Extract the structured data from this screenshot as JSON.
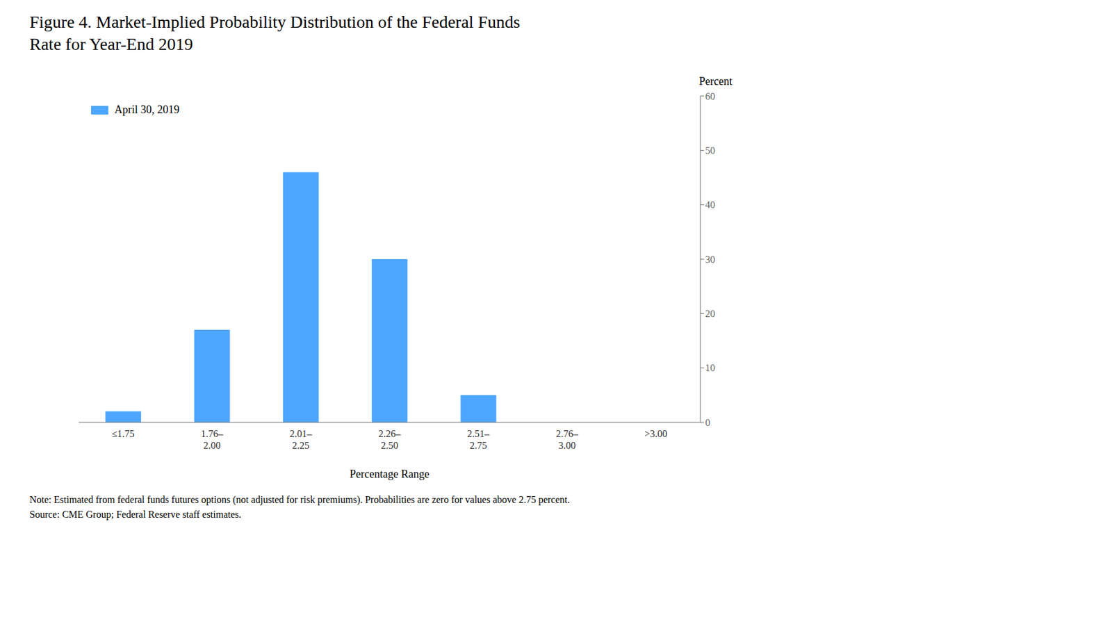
{
  "chart_data": {
    "type": "bar",
    "title": "Figure 4.  Market-Implied Probability Distribution of the Federal Funds\nRate for Year-End 2019",
    "categories": [
      "≤1.75",
      "1.76–\n2.00",
      "2.01–\n2.25",
      "2.26–\n2.50",
      "2.51–\n2.75",
      "2.76–\n3.00",
      ">3.00"
    ],
    "series": [
      {
        "name": "April 30, 2019",
        "color": "#4da6ff",
        "values": [
          2,
          17,
          46,
          30,
          5,
          0,
          0
        ]
      }
    ],
    "y_label": "Percent",
    "x_label": "Percentage Range",
    "ylim": [
      0,
      60
    ],
    "yticks": [
      0,
      10,
      20,
      30,
      40,
      50,
      60
    ],
    "grid": false,
    "legend": "upper left",
    "annotations": [
      "Note: Estimated from federal funds futures options (not adjusted for risk premiums).  Probabilities are zero for values above 2.75 percent.",
      "Source: CME Group; Federal Reserve staff estimates."
    ]
  }
}
